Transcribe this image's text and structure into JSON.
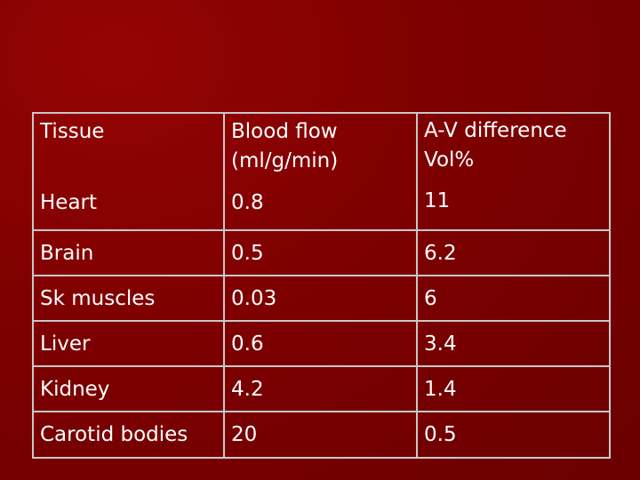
{
  "table": {
    "headers": {
      "tissue": "Tissue",
      "blood_flow_line1": "Blood flow",
      "blood_flow_line2": "(ml/g/min)",
      "av_line1": "A-V difference",
      "av_line2": "Vol%"
    },
    "rows": [
      {
        "tissue": "Heart",
        "blood_flow": "0.8",
        "av_difference": "11"
      },
      {
        "tissue": "Brain",
        "blood_flow": "0.5",
        "av_difference": "6.2"
      },
      {
        "tissue": "Sk muscles",
        "blood_flow": "0.03",
        "av_difference": "6"
      },
      {
        "tissue": "Liver",
        "blood_flow": "0.6",
        "av_difference": "3.4"
      },
      {
        "tissue": "Kidney",
        "blood_flow": "4.2",
        "av_difference": "1.4"
      },
      {
        "tissue": "Carotid bodies",
        "blood_flow": "20",
        "av_difference": "0.5"
      }
    ],
    "highlight_color": "#ffff99",
    "text_color": "#ffffff",
    "border_color": "#c8c8c8"
  },
  "background": {
    "color_primary": "#7e0000",
    "color_light": "#950404"
  }
}
